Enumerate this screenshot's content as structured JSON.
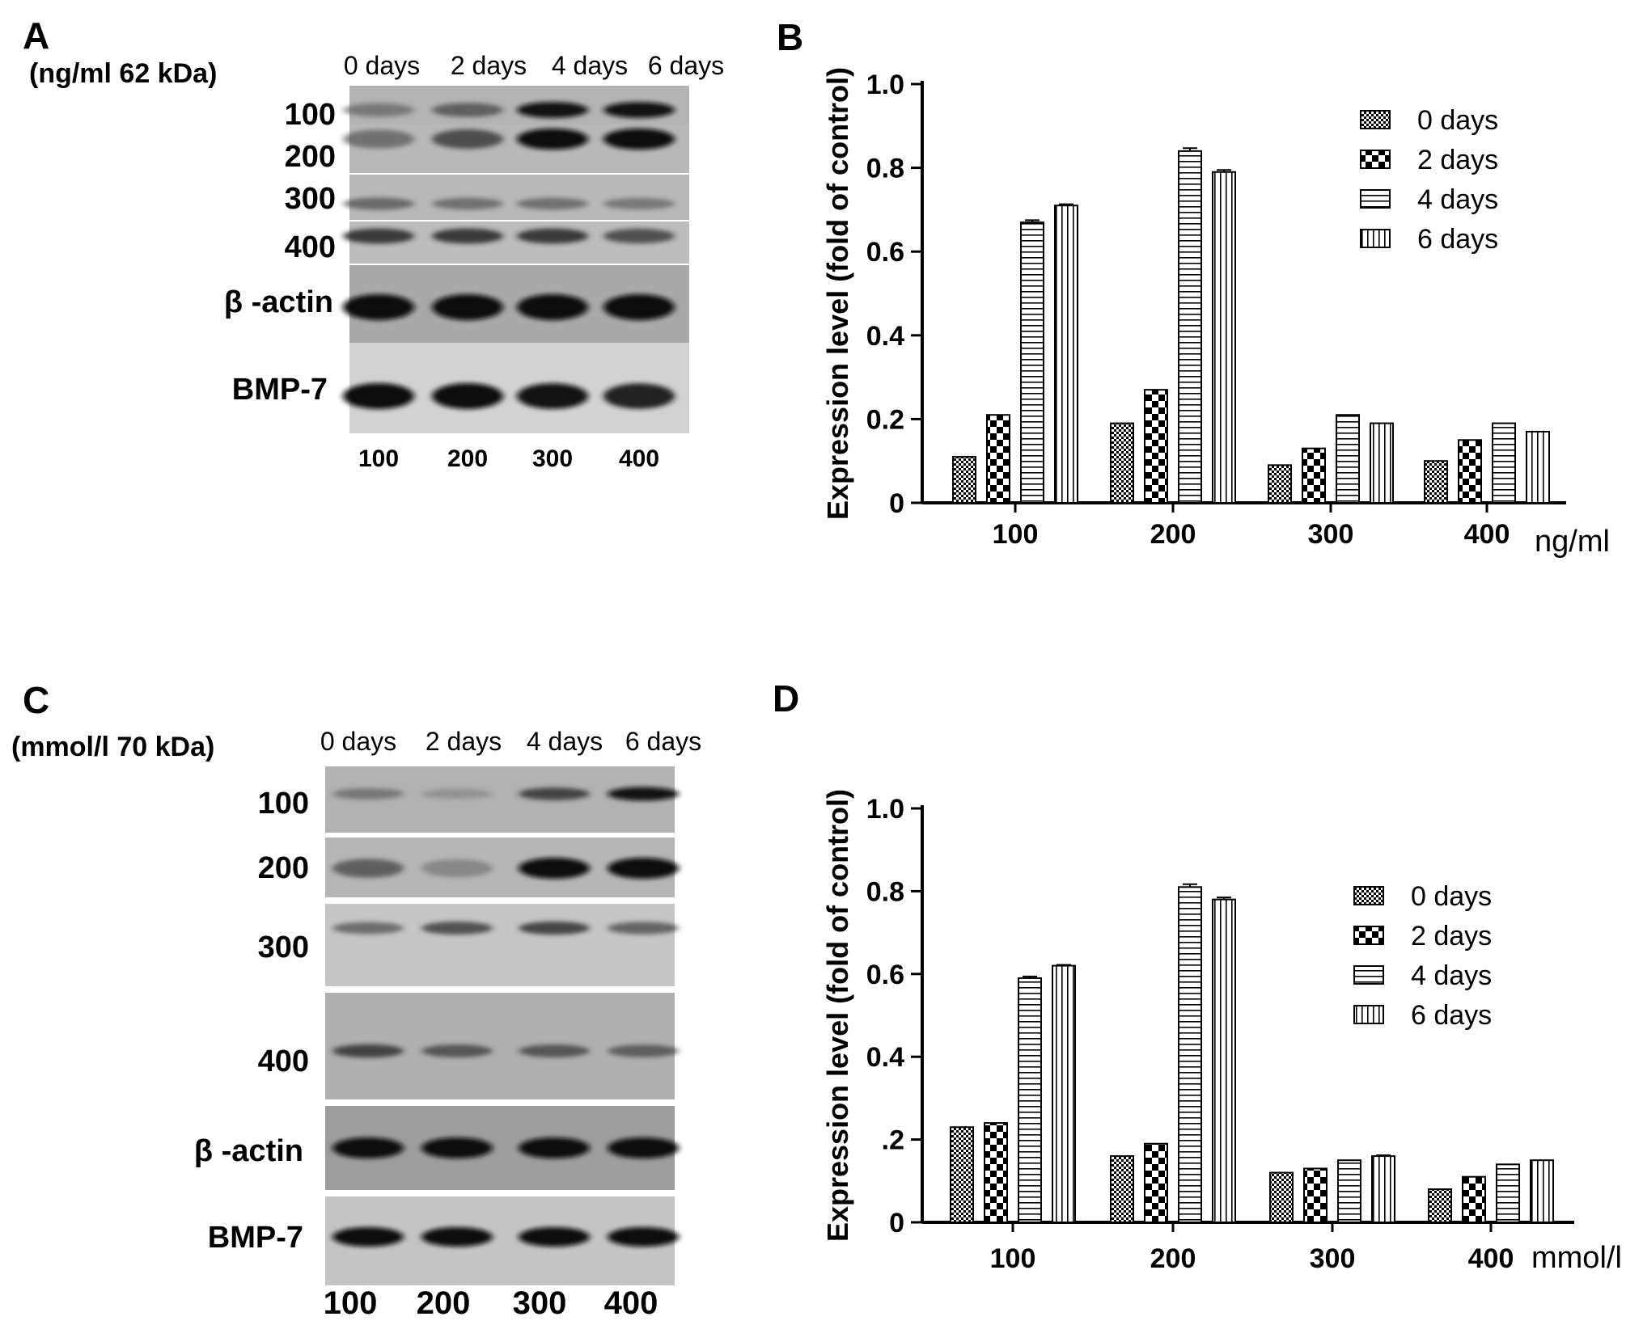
{
  "panels": {
    "A": {
      "letter": "A",
      "header": "(ng/ml 62 kDa)",
      "columns": [
        "0 days",
        "2 days",
        "4 days",
        "6 days"
      ],
      "row_labels": [
        "100",
        "200",
        "300",
        "400",
        "β -actin",
        "BMP-7"
      ],
      "bottom_labels": [
        "100",
        "200",
        "300",
        "400"
      ]
    },
    "C": {
      "letter": "C",
      "header": "(mmol/l 70  kDa)",
      "columns": [
        "0 days",
        "2 days",
        "4 days",
        "6 days"
      ],
      "row_labels": [
        "100",
        "200",
        "300",
        "400",
        "β -actin",
        "BMP-7"
      ],
      "bottom_labels": [
        "100",
        "200",
        "300",
        "400"
      ]
    },
    "B": {
      "letter": "B"
    },
    "D": {
      "letter": "D"
    }
  },
  "blots": {
    "A": {
      "bands": [
        {
          "row": "100",
          "intensity": [
            0.45,
            0.6,
            0.95,
            0.95
          ]
        },
        {
          "row": "200",
          "intensity": [
            0.5,
            0.7,
            1.0,
            1.0
          ]
        },
        {
          "row": "300",
          "intensity": [
            0.55,
            0.5,
            0.5,
            0.45
          ]
        },
        {
          "row": "400",
          "intensity": [
            0.8,
            0.8,
            0.8,
            0.7
          ]
        },
        {
          "row": "β -actin",
          "intensity": [
            1.0,
            1.0,
            1.0,
            1.0
          ]
        },
        {
          "row": "BMP-7",
          "intensity": [
            1.0,
            1.0,
            0.95,
            0.9
          ]
        }
      ]
    },
    "C": {
      "bands": [
        {
          "row": "100",
          "intensity": [
            0.45,
            0.25,
            0.75,
            0.95
          ]
        },
        {
          "row": "200",
          "intensity": [
            0.6,
            0.35,
            1.0,
            1.0
          ]
        },
        {
          "row": "300",
          "intensity": [
            0.55,
            0.7,
            0.75,
            0.6
          ]
        },
        {
          "row": "400",
          "intensity": [
            0.75,
            0.65,
            0.65,
            0.6
          ]
        },
        {
          "row": "β -actin",
          "intensity": [
            1.0,
            1.0,
            1.0,
            1.0
          ]
        },
        {
          "row": "BMP-7",
          "intensity": [
            1.0,
            1.0,
            1.0,
            1.0
          ]
        }
      ]
    }
  },
  "chart_data": [
    {
      "panel": "B",
      "type": "bar",
      "title": "",
      "ylabel": "Expression level (fold of control)",
      "xlabel": "ng/ml",
      "categories": [
        "100",
        "200",
        "300",
        "400"
      ],
      "ylim": [
        0,
        1.0
      ],
      "yticks": [
        "0",
        "0.2",
        "0.4",
        "0.6",
        "0.8",
        "1.0"
      ],
      "series": [
        {
          "name": "0 days",
          "pattern": "checker-fine",
          "values": [
            0.11,
            0.19,
            0.09,
            0.1
          ],
          "errors": [
            0,
            0,
            0,
            0
          ]
        },
        {
          "name": "2 days",
          "pattern": "checker-coarse",
          "values": [
            0.21,
            0.27,
            0.13,
            0.15
          ],
          "errors": [
            0,
            0,
            0,
            0
          ]
        },
        {
          "name": "4 days",
          "pattern": "horizontal-lines",
          "values": [
            0.67,
            0.84,
            0.21,
            0.19
          ],
          "errors": [
            0.005,
            0.007,
            0,
            0
          ]
        },
        {
          "name": "6 days",
          "pattern": "vertical-lines",
          "values": [
            0.71,
            0.79,
            0.19,
            0.17
          ],
          "errors": [
            0.003,
            0.005,
            0,
            0
          ]
        }
      ],
      "legend_position": "top-right",
      "grid": false
    },
    {
      "panel": "D",
      "type": "bar",
      "title": "",
      "ylabel": "Expression level (fold of control)",
      "xlabel": "mmol/l",
      "categories": [
        "100",
        "200",
        "300",
        "400"
      ],
      "ylim": [
        0,
        1.0
      ],
      "yticks": [
        "0",
        ".2",
        "0.4",
        "0.6",
        "0.8",
        "1.0"
      ],
      "series": [
        {
          "name": "0 days",
          "pattern": "checker-fine",
          "values": [
            0.23,
            0.16,
            0.12,
            0.08
          ],
          "errors": [
            0,
            0,
            0,
            0
          ]
        },
        {
          "name": "2 days",
          "pattern": "checker-coarse",
          "values": [
            0.24,
            0.19,
            0.13,
            0.11
          ],
          "errors": [
            0,
            0,
            0,
            0
          ]
        },
        {
          "name": "4 days",
          "pattern": "horizontal-lines",
          "values": [
            0.59,
            0.81,
            0.15,
            0.14
          ],
          "errors": [
            0.004,
            0.007,
            0,
            0
          ]
        },
        {
          "name": "6 days",
          "pattern": "vertical-lines",
          "values": [
            0.62,
            0.78,
            0.16,
            0.15
          ],
          "errors": [
            0.002,
            0.005,
            0.002,
            0
          ]
        }
      ],
      "legend_position": "right",
      "grid": false
    }
  ]
}
